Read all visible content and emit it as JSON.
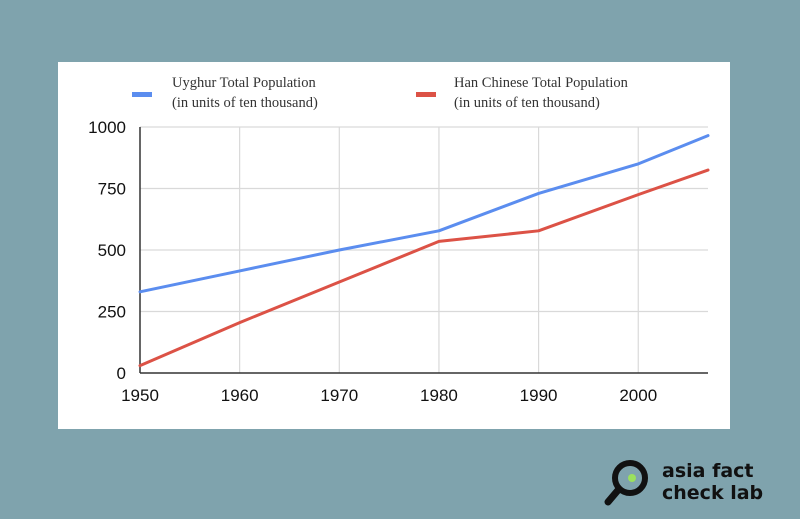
{
  "chart_data": {
    "type": "line",
    "x": [
      1950,
      1960,
      1970,
      1980,
      1990,
      2000,
      2007
    ],
    "xlim": [
      1950,
      2007
    ],
    "ylim": [
      0,
      1000
    ],
    "xticks": [
      "1950",
      "1960",
      "1970",
      "1980",
      "1990",
      "2000"
    ],
    "yticks": [
      "0",
      "250",
      "500",
      "750",
      "1000"
    ],
    "grid": true,
    "legend_position": "top",
    "series": [
      {
        "name": "Uyghur Total Population",
        "subname": "(in units of ten thousand)",
        "color": "#5b8def",
        "values": [
          330,
          415,
          500,
          578,
          730,
          850,
          965
        ]
      },
      {
        "name": "Han Chinese Total Population",
        "subname": "(in units of ten thousand)",
        "color": "#dc5246",
        "values": [
          30,
          205,
          370,
          535,
          578,
          725,
          825
        ]
      }
    ]
  },
  "brand": {
    "line1": "asia fact",
    "line2": "check lab",
    "icon": "magnifier-icon",
    "accent": "#9be15d"
  }
}
